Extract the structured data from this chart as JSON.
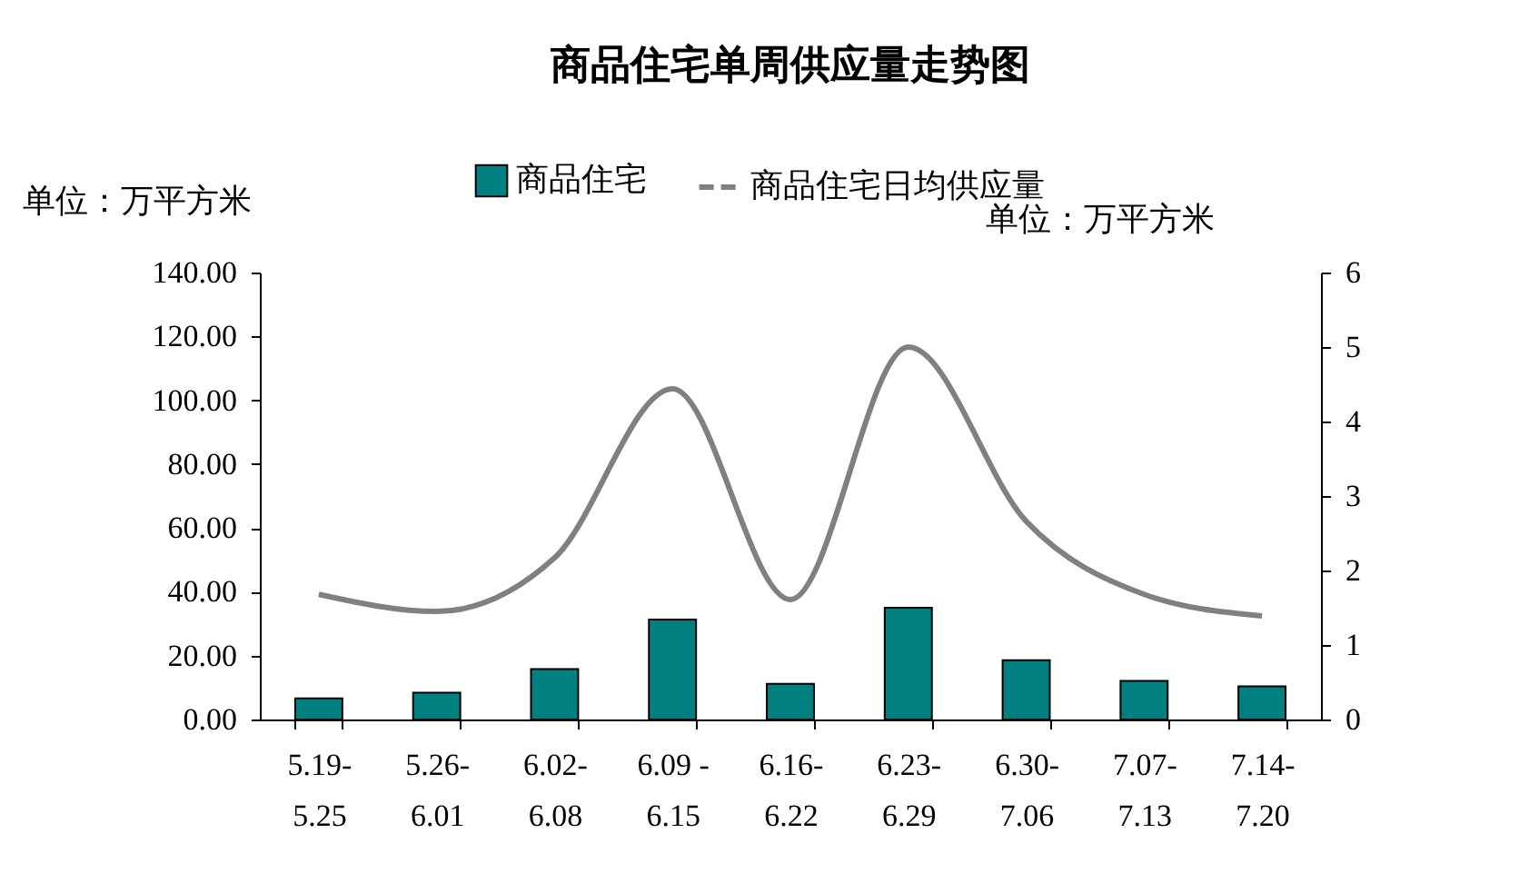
{
  "chart_data": {
    "type": "bar",
    "title": "商品住宅单周供应量走势图",
    "ylabel": "单位：万平方米",
    "y2label": "单位：万平方米",
    "categories": [
      "5.19-\n5.25",
      "5.26-\n6.01",
      "6.02-\n6.08",
      "6.09 -\n6.15",
      "6.16-\n6.22",
      "6.23-\n6.29",
      "6.30-\n7.06",
      "7.07-\n7.13",
      "7.14-\n7.20"
    ],
    "series": [
      {
        "name": "商品住宅",
        "color": "#008080",
        "values": [
          6.6,
          8.4,
          15.8,
          31.3,
          11.2,
          35.0,
          18.6,
          12.1,
          10.4
        ]
      },
      {
        "name": "商品住宅日均供应量",
        "type": "line",
        "axis": "y2",
        "color": "#808080",
        "values": [
          1.68,
          1.45,
          2.17,
          4.44,
          1.61,
          5.0,
          2.66,
          1.68,
          1.39
        ]
      }
    ],
    "ylim": [
      0,
      140
    ],
    "yticks": [
      {
        "value": 0,
        "label": "0.00"
      },
      {
        "value": 20,
        "label": "20.00"
      },
      {
        "value": 40,
        "label": "40.00"
      },
      {
        "value": 60,
        "label": "60.00"
      },
      {
        "value": 80,
        "label": "80.00"
      },
      {
        "value": 100,
        "label": "100.00"
      },
      {
        "value": 120,
        "label": "120.00"
      },
      {
        "value": 140,
        "label": "140.00"
      }
    ],
    "y2lim": [
      0,
      6
    ],
    "y2ticks": [
      0,
      1,
      2,
      3,
      4,
      5,
      6
    ],
    "legend": "top",
    "grid": false,
    "marker": "none",
    "line_style": "solid"
  }
}
